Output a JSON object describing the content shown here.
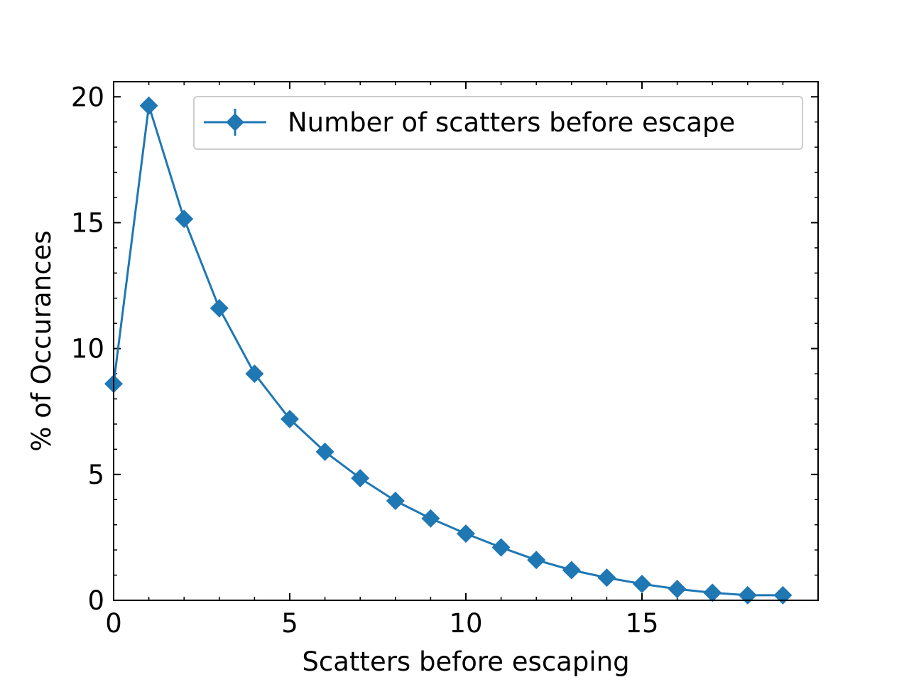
{
  "chart_data": {
    "type": "line",
    "xlabel": "Scatters before escaping",
    "ylabel": "% of Occurances",
    "xlim": [
      0,
      20
    ],
    "ylim": [
      0,
      20.6
    ],
    "xticks": [
      0,
      5,
      10,
      15
    ],
    "yticks": [
      0,
      5,
      10,
      15,
      20
    ],
    "x_minor_step": 1,
    "y_minor_step": 1,
    "tick_direction": "in",
    "ticks_on_all_sides": true,
    "grid": false,
    "legend_position": "top-right",
    "marker": "diamond",
    "color": "#1f77b4",
    "series": [
      {
        "name": "Number of scatters before escape",
        "x": [
          0,
          1,
          2,
          3,
          4,
          5,
          6,
          7,
          8,
          9,
          10,
          11,
          12,
          13,
          14,
          15,
          16,
          17,
          18,
          19
        ],
        "values": [
          8.6,
          19.65,
          15.15,
          11.6,
          9.0,
          7.2,
          5.9,
          4.85,
          3.95,
          3.25,
          2.65,
          2.1,
          1.6,
          1.2,
          0.9,
          0.65,
          0.45,
          0.3,
          0.2,
          0.2
        ]
      }
    ]
  }
}
